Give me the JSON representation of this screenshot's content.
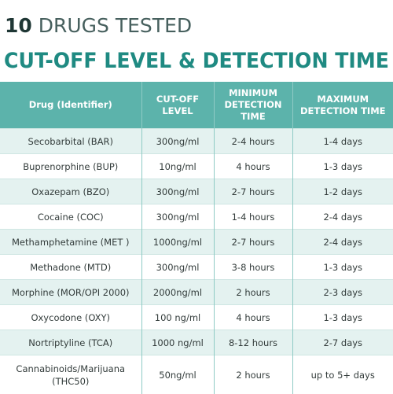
{
  "header": {
    "number": "10",
    "title": "DRUGS TESTED",
    "subtitle": "CUT-OFF LEVEL & DETECTION TIME"
  },
  "table": {
    "columns": [
      [
        "Drug (Identifier)"
      ],
      [
        "CUT-OFF",
        "LEVEL"
      ],
      [
        "MINIMUM",
        "DETECTION TIME"
      ],
      [
        "MAXIMUM",
        "DETECTION TIME"
      ]
    ],
    "rows": [
      [
        "Secobarbital (BAR)",
        "300ng/ml",
        "2-4 hours",
        "1-4 days"
      ],
      [
        "Buprenorphine (BUP)",
        "10ng/ml",
        "4 hours",
        "1-3 days"
      ],
      [
        "Oxazepam (BZO)",
        "300ng/ml",
        "2-7 hours",
        "1-2 days"
      ],
      [
        "Cocaine (COC)",
        "300ng/ml",
        "1-4 hours",
        "2-4 days"
      ],
      [
        "Methamphetamine (MET )",
        "1000ng/ml",
        "2-7 hours",
        "2-4 days"
      ],
      [
        "Methadone (MTD)",
        "300ng/ml",
        "3-8 hours",
        "1-3 days"
      ],
      [
        "Morphine (MOR/OPI 2000)",
        "2000ng/ml",
        "2 hours",
        "2-3 days"
      ],
      [
        "Oxycodone (OXY)",
        "100 ng/ml",
        "4 hours",
        "1-3 days"
      ],
      [
        "Nortriptyline (TCA)",
        "1000 ng/ml",
        "8-12 hours",
        "2-7 days"
      ],
      [
        "Cannabinoids/Marijuana (THC50)",
        "50ng/ml",
        "2 hours",
        "up to 5+ days"
      ]
    ]
  }
}
